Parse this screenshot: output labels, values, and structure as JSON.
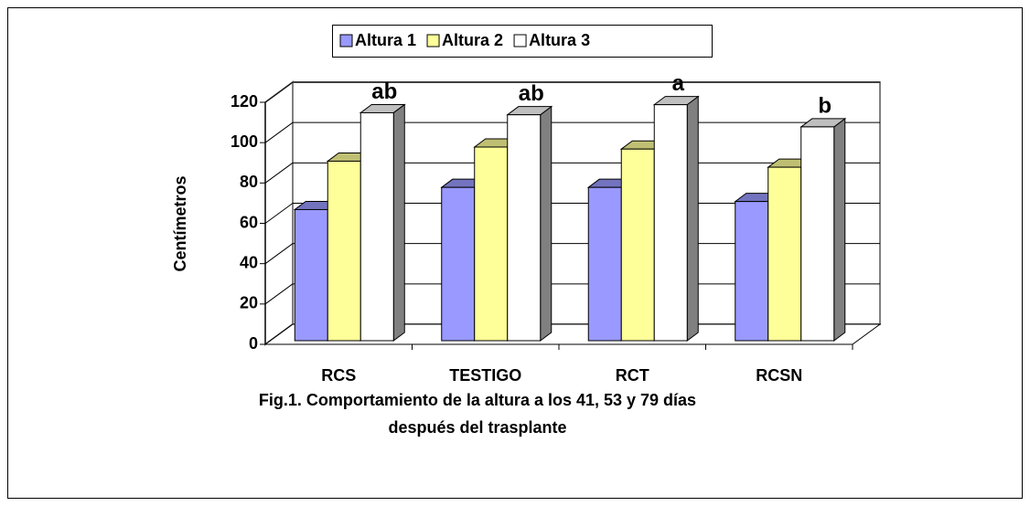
{
  "chart_data": {
    "type": "bar3d",
    "title": "Fig.1. Comportamiento de la altura a los 41, 53 y 79 días después del trasplante",
    "y_label": "Centímetros",
    "categories": [
      "RCS",
      "TESTIGO",
      "RCT",
      "RCSN"
    ],
    "series": [
      {
        "name": "Altura 1",
        "color": "#9999ff",
        "values": [
          65,
          76,
          76,
          69
        ]
      },
      {
        "name": "Altura 2",
        "color": "#ffff99",
        "values": [
          89,
          96,
          95,
          86
        ]
      },
      {
        "name": "Altura 3",
        "color": "#ffffff",
        "values": [
          113,
          112,
          117,
          106
        ]
      }
    ],
    "annotations": [
      "ab",
      "ab",
      "a",
      "b"
    ],
    "ylim": [
      0,
      120
    ],
    "yticks": [
      0,
      20,
      40,
      60,
      80,
      100,
      120
    ],
    "grid": true,
    "legend": "top"
  }
}
